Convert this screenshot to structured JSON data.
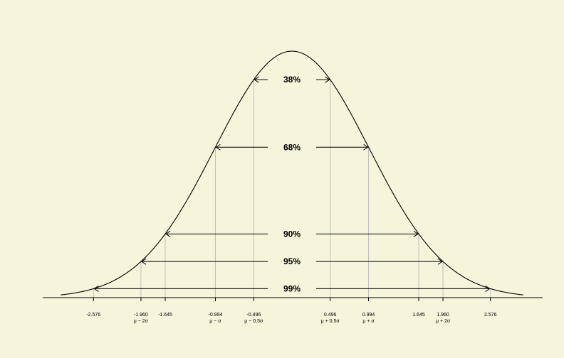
{
  "figure": {
    "colors": {
      "background": "#f5f5dc",
      "curve": "#000000",
      "guide_lines": "#bdbdbd",
      "arrows": "#000000"
    },
    "bands": [
      {
        "label": "38%",
        "lo": -0.496,
        "hi": 0.496
      },
      {
        "label": "68%",
        "lo": -0.994,
        "hi": 0.994
      },
      {
        "label": "90%",
        "lo": -1.645,
        "hi": 1.645
      },
      {
        "label": "95%",
        "lo": -1.96,
        "hi": 1.96
      },
      {
        "label": "99%",
        "lo": -2.576,
        "hi": 2.576
      }
    ],
    "ticks": [
      {
        "value": -2.576,
        "label": "-2.576",
        "sub": ""
      },
      {
        "value": -1.96,
        "label": "-1.960",
        "sub": "μ − 2σ"
      },
      {
        "value": -1.645,
        "label": "-1.645",
        "sub": ""
      },
      {
        "value": -0.994,
        "label": "-0.994",
        "sub": "μ − σ"
      },
      {
        "value": -0.496,
        "label": "-0.496",
        "sub": "μ − 0.5σ"
      },
      {
        "value": 0.496,
        "label": "0.496",
        "sub": "μ + 0.5σ"
      },
      {
        "value": 0.994,
        "label": "0.994",
        "sub": "μ + σ"
      },
      {
        "value": 1.645,
        "label": "1.645",
        "sub": ""
      },
      {
        "value": 1.96,
        "label": "1.960",
        "sub": "μ + 2σ"
      },
      {
        "value": 2.576,
        "label": "2.576",
        "sub": ""
      }
    ]
  }
}
